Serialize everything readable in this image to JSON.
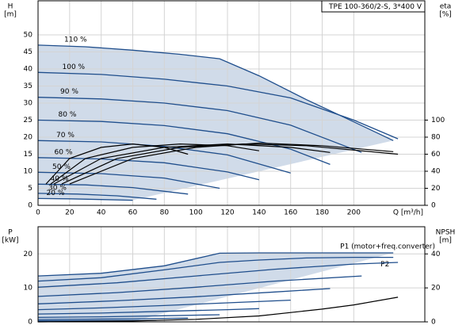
{
  "chart_data": [
    {
      "type": "line",
      "title": "TPE 100-360/2-S, 3*400 V",
      "y_label": "H",
      "y_unit": "[m]",
      "y2_label": "eta",
      "y2_unit": "[%]",
      "x_label": "Q [m³/h]",
      "xlim": [
        0,
        245
      ],
      "ylim": [
        0,
        60
      ],
      "y2lim": [
        0,
        240
      ],
      "xticks": [
        0,
        20,
        40,
        60,
        80,
        100,
        120,
        140,
        160,
        180,
        200
      ],
      "yticks": [
        0,
        5,
        10,
        15,
        20,
        25,
        30,
        35,
        40,
        45,
        50
      ],
      "y2ticks": [
        0,
        20,
        40,
        60,
        80,
        100
      ],
      "grid": true,
      "series": [
        {
          "name": "110 %",
          "color": "#1f4e8c",
          "x": [
            0,
            30,
            60,
            90,
            115,
            140,
            170,
            200,
            225
          ],
          "values": [
            47,
            46.5,
            45.5,
            44.3,
            43,
            38,
            31,
            24.5,
            19
          ]
        },
        {
          "name": "100 %",
          "color": "#1f4e8c",
          "x": [
            0,
            40,
            80,
            120,
            160,
            200,
            228
          ],
          "values": [
            39,
            38.4,
            37,
            35,
            31.5,
            25,
            19.5
          ]
        },
        {
          "name": "90 %",
          "color": "#1f4e8c",
          "x": [
            0,
            40,
            80,
            120,
            160,
            205
          ],
          "values": [
            31.7,
            31.2,
            30,
            27.8,
            23.5,
            15.5
          ]
        },
        {
          "name": "80 %",
          "color": "#1f4e8c",
          "x": [
            0,
            40,
            80,
            120,
            160,
            185
          ],
          "values": [
            25,
            24.6,
            23.4,
            21,
            16.5,
            12
          ]
        },
        {
          "name": "70 %",
          "color": "#1f4e8c",
          "x": [
            0,
            40,
            80,
            120,
            160
          ],
          "values": [
            19,
            18.6,
            17.3,
            14.8,
            9.5
          ]
        },
        {
          "name": "60 %",
          "color": "#1f4e8c",
          "x": [
            0,
            40,
            80,
            120,
            140
          ],
          "values": [
            14,
            13.6,
            12.5,
            9.8,
            7.5
          ]
        },
        {
          "name": "50 %",
          "color": "#1f4e8c",
          "x": [
            0,
            40,
            80,
            115
          ],
          "values": [
            9.7,
            9.3,
            8,
            5
          ]
        },
        {
          "name": "40 %",
          "color": "#1f4e8c",
          "x": [
            0,
            30,
            60,
            95
          ],
          "values": [
            6.2,
            6,
            5.2,
            3.3
          ]
        },
        {
          "name": "30 %",
          "color": "#1f4e8c",
          "x": [
            0,
            25,
            50,
            75
          ],
          "values": [
            3.5,
            3.3,
            2.8,
            1.8
          ]
        },
        {
          "name": "20 %",
          "color": "#1f4e8c",
          "x": [
            0,
            20,
            40,
            60
          ],
          "values": [
            2,
            1.9,
            1.7,
            1.5
          ]
        },
        {
          "color": "#000000",
          "axis": "y2",
          "x": [
            20,
            60,
            100,
            140,
            180,
            225
          ],
          "values": [
            25,
            55,
            68,
            73,
            70,
            63
          ]
        },
        {
          "color": "#000000",
          "axis": "y2",
          "x": [
            15,
            50,
            90,
            130,
            170,
            228
          ],
          "values": [
            25,
            55,
            68,
            72,
            70,
            60
          ]
        },
        {
          "color": "#000000",
          "axis": "y2",
          "x": [
            10,
            40,
            80,
            120,
            160,
            185
          ],
          "values": [
            25,
            55,
            68,
            72,
            68,
            62
          ]
        },
        {
          "color": "#000000",
          "axis": "y2",
          "x": [
            8,
            30,
            60,
            90,
            120,
            140
          ],
          "values": [
            25,
            55,
            68,
            72,
            70,
            64
          ]
        },
        {
          "color": "#000000",
          "axis": "y2",
          "x": [
            5,
            20,
            40,
            60,
            80,
            95
          ],
          "values": [
            25,
            55,
            68,
            72,
            68,
            60
          ]
        }
      ]
    },
    {
      "type": "line",
      "y_label": "P",
      "y_unit": "[kW]",
      "y2_label": "NPSH",
      "y2_unit": "[m]",
      "xlim": [
        0,
        245
      ],
      "ylim": [
        0,
        28
      ],
      "y2lim": [
        0,
        56
      ],
      "xticks": [
        0,
        20,
        40,
        60,
        80,
        100,
        120,
        140,
        160,
        180,
        200
      ],
      "yticks": [
        0,
        10,
        20
      ],
      "y2ticks": [
        0,
        20,
        40
      ],
      "grid": true,
      "series": [
        {
          "name": "P1 (motor+freq.converter)",
          "color": "#1f4e8c",
          "x": [
            0,
            40,
            80,
            115,
            140,
            170,
            200,
            225
          ],
          "values": [
            13.5,
            14.3,
            16.5,
            20.2,
            20.3,
            20.3,
            20.3,
            20.3
          ]
        },
        {
          "name": "P2",
          "color": "#1f4e8c",
          "x": [
            0,
            40,
            80,
            115,
            140,
            170,
            200,
            225
          ],
          "values": [
            12,
            13,
            15.3,
            17.5,
            18.2,
            18.8,
            19,
            19
          ]
        },
        {
          "color": "#1f4e8c",
          "x": [
            0,
            50,
            100,
            150,
            200,
            228
          ],
          "values": [
            10.2,
            11.5,
            13.5,
            15.5,
            17,
            17.5
          ]
        },
        {
          "color": "#1f4e8c",
          "x": [
            0,
            50,
            100,
            150,
            205
          ],
          "values": [
            7.5,
            8.6,
            10.2,
            12,
            13.5
          ]
        },
        {
          "color": "#1f4e8c",
          "x": [
            0,
            50,
            100,
            150,
            185
          ],
          "values": [
            5.3,
            6.2,
            7.4,
            8.8,
            9.8
          ]
        },
        {
          "color": "#1f4e8c",
          "x": [
            0,
            40,
            80,
            120,
            160
          ],
          "values": [
            3.6,
            4.1,
            4.8,
            5.6,
            6.4
          ]
        },
        {
          "color": "#1f4e8c",
          "x": [
            0,
            40,
            80,
            120,
            140
          ],
          "values": [
            2.3,
            2.6,
            3.1,
            3.6,
            3.9
          ]
        },
        {
          "color": "#1f4e8c",
          "x": [
            0,
            40,
            80,
            115
          ],
          "values": [
            1.3,
            1.5,
            1.8,
            2.1
          ]
        },
        {
          "color": "#1f4e8c",
          "x": [
            0,
            30,
            60,
            95
          ],
          "values": [
            0.7,
            0.8,
            0.9,
            1.1
          ]
        },
        {
          "color": "#1f4e8c",
          "x": [
            0,
            25,
            50,
            75
          ],
          "values": [
            0.3,
            0.35,
            0.4,
            0.45
          ]
        },
        {
          "color": "#1f4e8c",
          "x": [
            0,
            20,
            40,
            60
          ],
          "values": [
            0.1,
            0.12,
            0.14,
            0.15
          ]
        },
        {
          "color": "#000000",
          "axis": "y2",
          "x": [
            0,
            60,
            100,
            140,
            180,
            200,
            228
          ],
          "values": [
            0,
            0.5,
            1.5,
            3.5,
            7.5,
            10,
            14.5
          ]
        }
      ]
    }
  ]
}
